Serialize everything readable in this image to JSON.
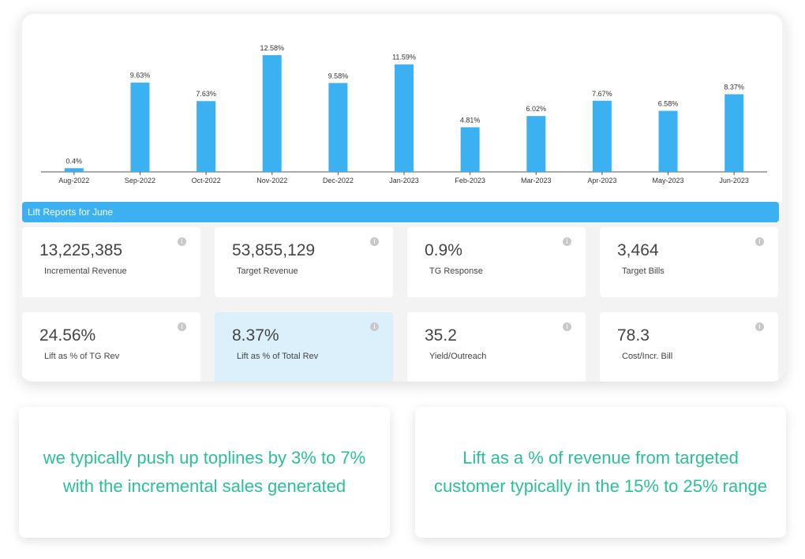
{
  "chart_data": {
    "type": "bar",
    "categories": [
      "Aug-2022",
      "Sep-2022",
      "Oct-2022",
      "Nov-2022",
      "Dec-2022",
      "Jan-2023",
      "Feb-2023",
      "Mar-2023",
      "Apr-2023",
      "May-2023",
      "Jun-2023"
    ],
    "values": [
      0.4,
      9.63,
      7.63,
      12.58,
      9.58,
      11.59,
      4.81,
      6.02,
      7.67,
      6.58,
      8.37
    ],
    "data_labels": [
      "0.4%",
      "9.63%",
      "7.63%",
      "12.58%",
      "9.58%",
      "11.59%",
      "4.81%",
      "6.02%",
      "7.67%",
      "6.58%",
      "8.37%"
    ],
    "ylim": [
      0,
      12.58
    ],
    "bar_color": "#3cb1f1",
    "grid": false,
    "title": "",
    "xlabel": "",
    "ylabel": ""
  },
  "section": {
    "title": "Lift Reports for June"
  },
  "metrics": [
    {
      "value": "13,225,385",
      "label": "Incremental Revenue"
    },
    {
      "value": "53,855,129",
      "label": "Target Revenue"
    },
    {
      "value": "0.9%",
      "label": "TG Response"
    },
    {
      "value": "3,464",
      "label": "Target Bills"
    },
    {
      "value": "24.56%",
      "label": "Lift as % of TG Rev"
    },
    {
      "value": "8.37%",
      "label": "Lift as % of Total Rev"
    },
    {
      "value": "35.2",
      "label": "Yield/Outreach"
    },
    {
      "value": "78.3",
      "label": "Cost/Incr. Bill"
    }
  ],
  "info_icon_glyph": "i",
  "quotes": [
    {
      "text": "we typically push up toplines by 3% to 7% with the incremental sales generated"
    },
    {
      "text": "Lift as a % of revenue from targeted customer typically in the 15% to 25% range"
    }
  ],
  "colors": {
    "accent": "#3cb1f1",
    "quote_text": "#2bbf9b",
    "highlight_card": "#dcf0fb"
  }
}
